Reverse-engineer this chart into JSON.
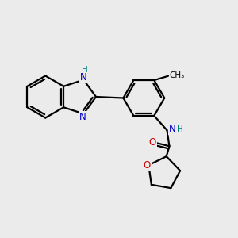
{
  "bg_color": "#ebebeb",
  "bond_color": "#000000",
  "n_color": "#0000cc",
  "o_color": "#cc0000",
  "h_color": "#008080",
  "line_width": 1.6,
  "figsize": [
    3.0,
    3.0
  ],
  "dpi": 100,
  "xlim": [
    0,
    1
  ],
  "ylim": [
    0,
    1
  ]
}
